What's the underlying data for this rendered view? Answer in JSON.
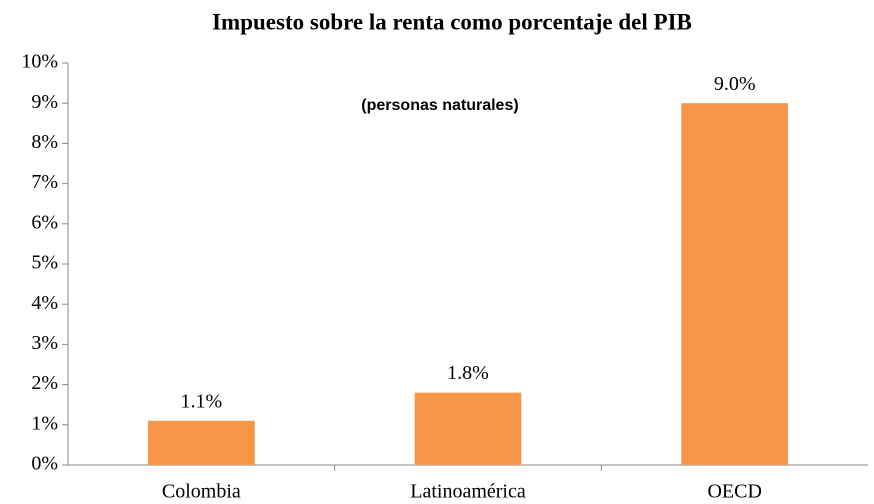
{
  "chart_data": {
    "type": "bar",
    "title": "Impuesto sobre la renta como porcentaje del PIB",
    "subtitle": "(personas naturales)",
    "categories": [
      "Colombia",
      "Latinoamérica",
      "OECD"
    ],
    "values": [
      1.1,
      1.8,
      9.0
    ],
    "value_labels": [
      "1.1%",
      "1.8%",
      "9.0%"
    ],
    "color": "#f79646",
    "ylim": [
      0,
      10
    ],
    "yticks": [
      {
        "value": 0,
        "label": "0%"
      },
      {
        "value": 1,
        "label": "1%"
      },
      {
        "value": 2,
        "label": "2%"
      },
      {
        "value": 3,
        "label": "3%"
      },
      {
        "value": 4,
        "label": "4%"
      },
      {
        "value": 5,
        "label": "5%"
      },
      {
        "value": 6,
        "label": "6%"
      },
      {
        "value": 7,
        "label": "7%"
      },
      {
        "value": 8,
        "label": "8%"
      },
      {
        "value": 9,
        "label": "9%"
      },
      {
        "value": 10,
        "label": "10%"
      }
    ],
    "grid": false
  }
}
